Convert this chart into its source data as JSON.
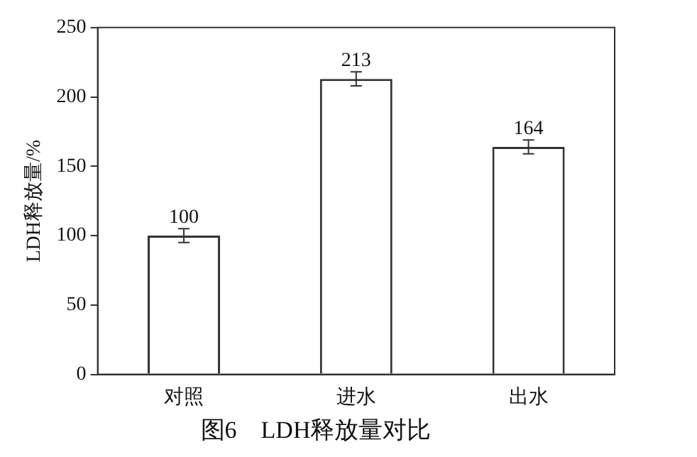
{
  "chart_data": {
    "type": "bar",
    "title": "图6　LDH释放量对比",
    "ylabel": "LDH释放量/%",
    "categories": [
      "对照",
      "进水",
      "出水"
    ],
    "values": [
      100,
      213,
      164
    ],
    "errors": [
      5,
      5,
      5
    ],
    "color": "#ffffff",
    "ylim": [
      0,
      250
    ],
    "yticks": [
      0,
      50,
      100,
      150,
      200,
      250
    ],
    "data_labels": true,
    "grid": false,
    "legend": false
  }
}
